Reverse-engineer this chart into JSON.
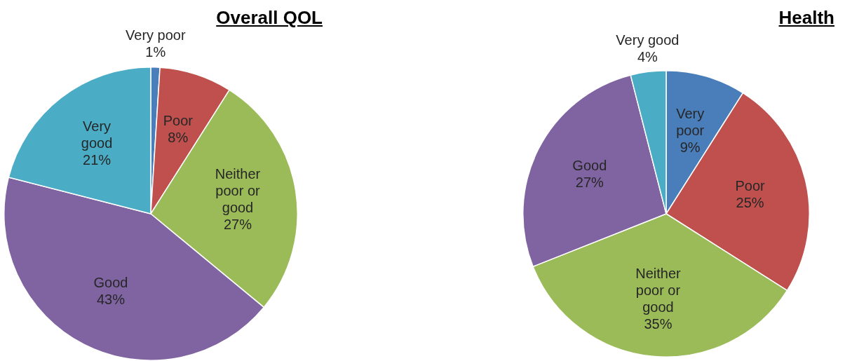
{
  "chart_data": [
    {
      "type": "pie",
      "title": "Overall QOL",
      "categories": [
        "Very poor",
        "Poor",
        "Neither poor or good",
        "Good",
        "Very good"
      ],
      "values": [
        1,
        8,
        27,
        43,
        21
      ],
      "value_labels": [
        "1%",
        "8%",
        "27%",
        "43%",
        "21%"
      ],
      "colors": [
        "#4a7ebb",
        "#c0504d",
        "#9bbb59",
        "#8064a2",
        "#4bacc6"
      ]
    },
    {
      "type": "pie",
      "title": "Health",
      "categories": [
        "Very poor",
        "Poor",
        "Neither poor or good",
        "Good",
        "Very good"
      ],
      "values": [
        9,
        25,
        35,
        27,
        4
      ],
      "value_labels": [
        "9%",
        "25%",
        "35%",
        "27%",
        "4%"
      ],
      "colors": [
        "#4a7ebb",
        "#c0504d",
        "#9bbb59",
        "#8064a2",
        "#4bacc6"
      ]
    }
  ]
}
